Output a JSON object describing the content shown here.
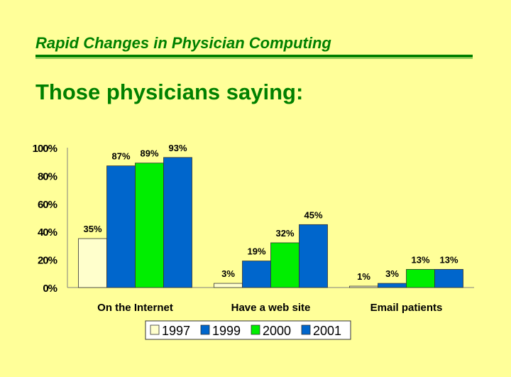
{
  "header": {
    "title": "Rapid Changes in Physician Computing",
    "subtitle": "Those physicians saying:"
  },
  "colors": {
    "background": "#FFFF99",
    "accent": "#008000"
  },
  "chart_data": {
    "type": "bar",
    "title": "",
    "xlabel": "",
    "ylabel": "",
    "ylim": [
      0,
      100
    ],
    "yticks": [
      "0%",
      "20%",
      "40%",
      "60%",
      "80%",
      "100%"
    ],
    "categories": [
      "On the Internet",
      "Have a web site",
      "Email patients"
    ],
    "series": [
      {
        "name": "1997",
        "color": "#FFFFCC",
        "values": [
          35,
          3,
          1
        ],
        "labels": [
          "35%",
          "3%",
          "1%"
        ]
      },
      {
        "name": "1999",
        "color": "#0066CC",
        "values": [
          87,
          19,
          3
        ],
        "labels": [
          "87%",
          "19%",
          "3%"
        ]
      },
      {
        "name": "2000",
        "color": "#00EE00",
        "values": [
          89,
          32,
          13
        ],
        "labels": [
          "89%",
          "32%",
          "13%"
        ]
      },
      {
        "name": "2001",
        "color": "#0066CC",
        "values": [
          93,
          45,
          13
        ],
        "labels": [
          "93%",
          "45%",
          "13%"
        ]
      }
    ],
    "legend_position": "bottom",
    "grid": false
  }
}
